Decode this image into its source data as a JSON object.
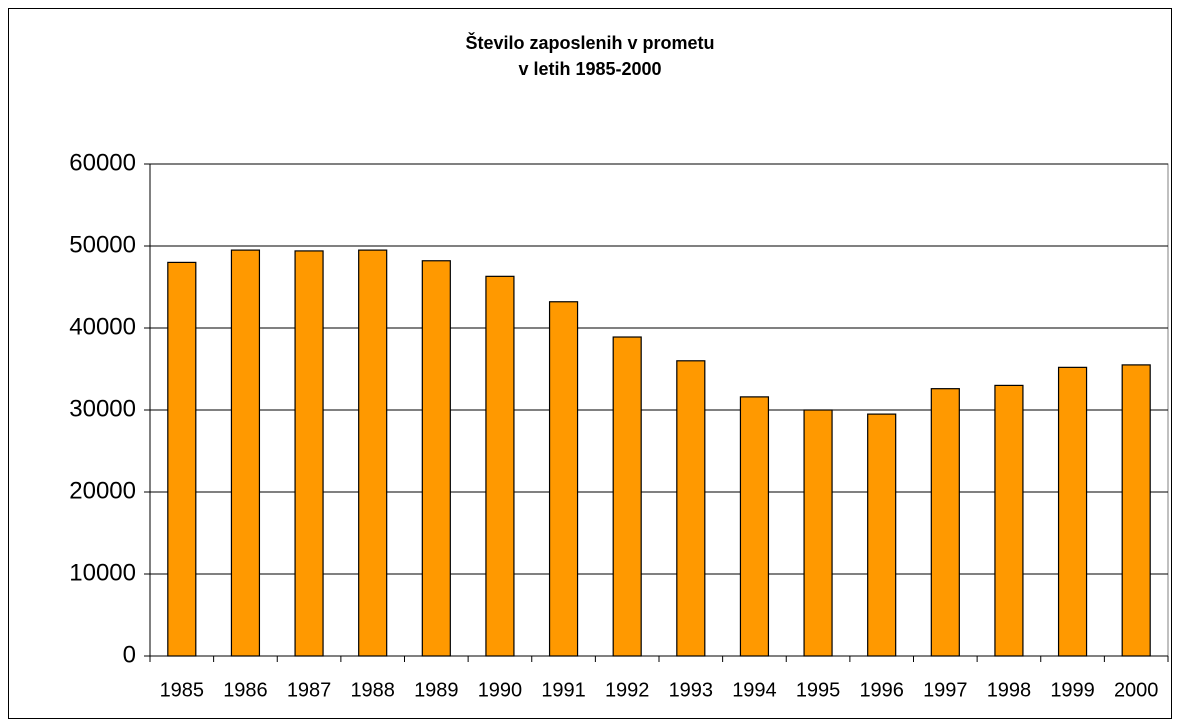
{
  "chart_data": {
    "type": "bar",
    "title": "Število zaposlenih v prometu",
    "subtitle": "v letih 1985-2000",
    "categories": [
      "1985",
      "1986",
      "1987",
      "1988",
      "1989",
      "1990",
      "1991",
      "1992",
      "1993",
      "1994",
      "1995",
      "1996",
      "1997",
      "1998",
      "1999",
      "2000"
    ],
    "values": [
      48000,
      49500,
      49400,
      49500,
      48200,
      46300,
      43200,
      38900,
      36000,
      31600,
      30000,
      29500,
      32600,
      33000,
      35200,
      35500
    ],
    "color": "#ff9900",
    "ylim": [
      0,
      60000
    ],
    "yticks": [
      0,
      10000,
      20000,
      30000,
      40000,
      50000,
      60000
    ],
    "grid": true
  }
}
